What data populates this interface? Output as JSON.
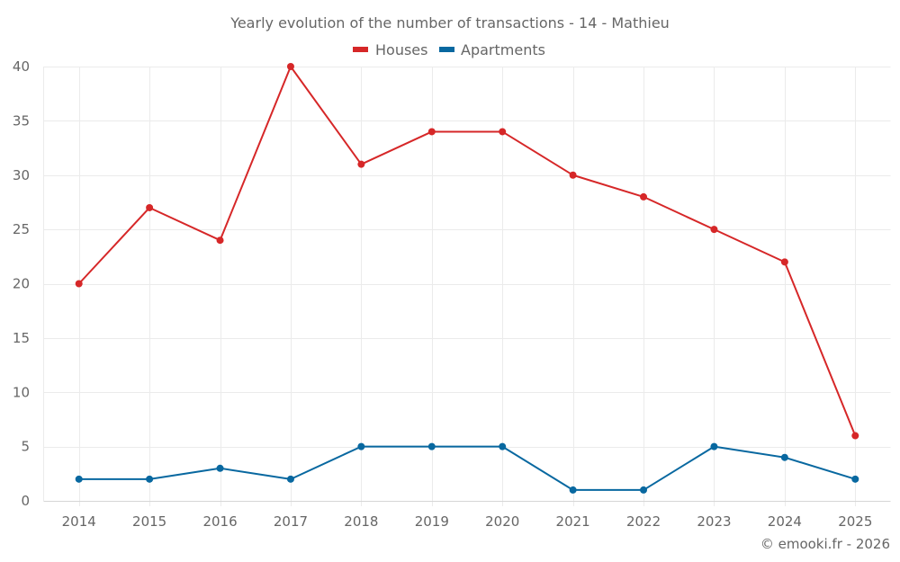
{
  "chart_data": {
    "type": "line",
    "title": "Yearly evolution of the number of transactions - 14 - Mathieu",
    "xlabel": "",
    "ylabel": "",
    "categories": [
      "2014",
      "2015",
      "2016",
      "2017",
      "2018",
      "2019",
      "2020",
      "2021",
      "2022",
      "2023",
      "2024",
      "2025"
    ],
    "ylim": [
      0,
      40
    ],
    "yticks": [
      0,
      5,
      10,
      15,
      20,
      25,
      30,
      35,
      40
    ],
    "grid": true,
    "legend_position": "top-center",
    "series": [
      {
        "name": "Houses",
        "color": "#d62728",
        "values": [
          20,
          27,
          24,
          40,
          31,
          34,
          34,
          30,
          28,
          25,
          22,
          6
        ]
      },
      {
        "name": "Apartments",
        "color": "#0868a0",
        "values": [
          2,
          2,
          3,
          2,
          5,
          5,
          5,
          1,
          1,
          5,
          4,
          2
        ]
      }
    ],
    "credit": "© emooki.fr - 2026"
  }
}
